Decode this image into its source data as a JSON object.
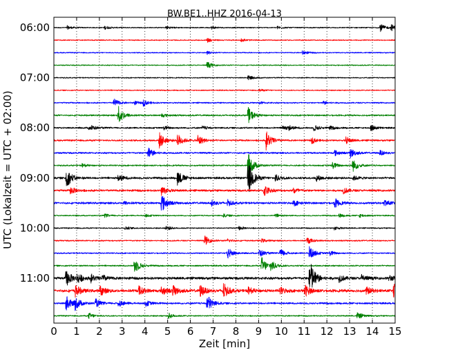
{
  "chart_data": {
    "type": "line",
    "title": "BW.BE1..HHZ 2016-04-13",
    "xlabel": "Zeit  [min]",
    "ylabel": "UTC (Lokalzeit = UTC + 02:00)",
    "xlim": [
      0,
      15
    ],
    "x_ticks": [
      "0",
      "1",
      "2",
      "3",
      "4",
      "5",
      "6",
      "7",
      "8",
      "9",
      "10",
      "11",
      "12",
      "13",
      "14",
      "15"
    ],
    "y_ticks": [
      "06:00",
      "07:00",
      "08:00",
      "09:00",
      "10:00",
      "11:00"
    ],
    "grid": "vertical dotted",
    "trace_interval_min": 15,
    "trace_colors": [
      "#000000",
      "#ff0000",
      "#0000ff",
      "#008000"
    ],
    "series": [
      {
        "start": "06:00",
        "color": "#000000",
        "noise": 0.8,
        "events": [
          [
            0.55,
            3
          ],
          [
            2.2,
            3
          ],
          [
            4.9,
            3
          ],
          [
            6.9,
            2.5
          ],
          [
            9.8,
            2.5
          ],
          [
            14.3,
            7
          ],
          [
            14.8,
            5
          ]
        ]
      },
      {
        "start": "06:15",
        "color": "#ff0000",
        "noise": 0.8,
        "events": [
          [
            6.7,
            4
          ],
          [
            8.2,
            2.5
          ]
        ]
      },
      {
        "start": "06:30",
        "color": "#0000ff",
        "noise": 0.8,
        "events": [
          [
            6.7,
            3
          ],
          [
            10.9,
            3.5
          ]
        ]
      },
      {
        "start": "06:45",
        "color": "#008000",
        "noise": 0.8,
        "events": [
          [
            6.7,
            6
          ]
        ]
      },
      {
        "start": "07:00",
        "color": "#000000",
        "noise": 0.8,
        "events": [
          [
            8.5,
            4
          ]
        ]
      },
      {
        "start": "07:15",
        "color": "#ff0000",
        "noise": 0.8,
        "events": [
          [
            9.0,
            2
          ]
        ]
      },
      {
        "start": "07:30",
        "color": "#0000ff",
        "noise": 1.0,
        "events": [
          [
            2.6,
            7
          ],
          [
            3.5,
            3
          ],
          [
            3.9,
            5
          ],
          [
            9.0,
            2
          ],
          [
            11.8,
            3
          ]
        ]
      },
      {
        "start": "07:45",
        "color": "#008000",
        "noise": 1.2,
        "events": [
          [
            2.8,
            16
          ],
          [
            4.7,
            3
          ],
          [
            8.5,
            14
          ]
        ]
      },
      {
        "start": "08:00",
        "color": "#000000",
        "noise": 1.2,
        "events": [
          [
            1.5,
            2
          ],
          [
            1.6,
            3
          ],
          [
            4.8,
            3
          ],
          [
            6.5,
            3
          ],
          [
            10.0,
            5
          ],
          [
            10.3,
            3
          ],
          [
            11.4,
            5
          ],
          [
            12.1,
            3
          ],
          [
            13.9,
            5
          ]
        ]
      },
      {
        "start": "08:15",
        "color": "#ff0000",
        "noise": 1.3,
        "events": [
          [
            4.6,
            14
          ],
          [
            5.4,
            12
          ],
          [
            6.3,
            10
          ],
          [
            9.3,
            16
          ],
          [
            11.3,
            5
          ],
          [
            12.8,
            6
          ]
        ]
      },
      {
        "start": "08:30",
        "color": "#0000ff",
        "noise": 1.3,
        "events": [
          [
            4.1,
            10
          ],
          [
            12.3,
            5
          ],
          [
            13.0,
            8
          ],
          [
            14.3,
            4
          ]
        ]
      },
      {
        "start": "08:45",
        "color": "#008000",
        "noise": 1.1,
        "events": [
          [
            1.2,
            3
          ],
          [
            8.5,
            22
          ],
          [
            12.2,
            6
          ],
          [
            13.1,
            11
          ]
        ]
      },
      {
        "start": "09:00",
        "color": "#000000",
        "noise": 1.6,
        "events": [
          [
            0.5,
            18
          ],
          [
            2.8,
            6
          ],
          [
            5.4,
            14
          ],
          [
            8.5,
            30
          ],
          [
            9.7,
            6
          ],
          [
            11.5,
            5
          ],
          [
            13.1,
            4
          ]
        ]
      },
      {
        "start": "09:15",
        "color": "#ff0000",
        "noise": 1.6,
        "events": [
          [
            0.7,
            6
          ],
          [
            4.7,
            8
          ],
          [
            9.2,
            10
          ],
          [
            10.5,
            5
          ],
          [
            12.7,
            5
          ]
        ]
      },
      {
        "start": "09:30",
        "color": "#0000ff",
        "noise": 1.6,
        "events": [
          [
            3.0,
            3
          ],
          [
            4.7,
            16
          ],
          [
            6.9,
            5
          ],
          [
            7.6,
            5
          ],
          [
            10.5,
            5
          ],
          [
            12.3,
            8
          ],
          [
            14.5,
            6
          ]
        ]
      },
      {
        "start": "09:45",
        "color": "#008000",
        "noise": 0.9,
        "events": [
          [
            2.2,
            3
          ],
          [
            4.0,
            2
          ],
          [
            7.4,
            3
          ],
          [
            9.7,
            3
          ],
          [
            12.5,
            3
          ],
          [
            13.4,
            3
          ]
        ]
      },
      {
        "start": "10:00",
        "color": "#000000",
        "noise": 0.9,
        "events": [
          [
            3.1,
            3
          ],
          [
            4.9,
            4
          ],
          [
            8.1,
            3
          ],
          [
            12.3,
            3
          ]
        ]
      },
      {
        "start": "10:15",
        "color": "#ff0000",
        "noise": 1.0,
        "events": [
          [
            6.6,
            8
          ],
          [
            7.6,
            3
          ],
          [
            9.1,
            3
          ],
          [
            11.1,
            6
          ]
        ]
      },
      {
        "start": "10:30",
        "color": "#0000ff",
        "noise": 1.0,
        "events": [
          [
            7.6,
            10
          ],
          [
            9.0,
            7
          ],
          [
            9.9,
            8
          ],
          [
            11.2,
            12
          ],
          [
            12.1,
            4
          ]
        ]
      },
      {
        "start": "10:45",
        "color": "#008000",
        "noise": 1.1,
        "events": [
          [
            3.5,
            14
          ],
          [
            9.1,
            15
          ],
          [
            9.5,
            8
          ]
        ]
      },
      {
        "start": "11:00",
        "color": "#000000",
        "noise": 2.0,
        "events": [
          [
            0.5,
            14
          ],
          [
            1.0,
            8
          ],
          [
            1.6,
            6
          ],
          [
            2.1,
            5
          ],
          [
            11.2,
            35
          ],
          [
            12.5,
            6
          ],
          [
            13.5,
            6
          ],
          [
            14.7,
            5
          ]
        ]
      },
      {
        "start": "11:15",
        "color": "#ff0000",
        "noise": 2.2,
        "events": [
          [
            0.9,
            10
          ],
          [
            2.0,
            8
          ],
          [
            3.7,
            8
          ],
          [
            4.7,
            8
          ],
          [
            5.2,
            8
          ],
          [
            6.4,
            10
          ],
          [
            7.4,
            14
          ],
          [
            8.5,
            6
          ],
          [
            9.9,
            6
          ],
          [
            11.0,
            10
          ],
          [
            13.7,
            6
          ],
          [
            14.9,
            12
          ]
        ]
      },
      {
        "start": "11:30",
        "color": "#0000ff",
        "noise": 1.4,
        "events": [
          [
            0.5,
            14
          ],
          [
            0.9,
            10
          ],
          [
            1.8,
            7
          ],
          [
            2.8,
            6
          ],
          [
            4.0,
            5
          ],
          [
            6.7,
            16
          ]
        ]
      },
      {
        "start": "11:45",
        "color": "#008000",
        "noise": 1.0,
        "events": [
          [
            1.5,
            5
          ],
          [
            5.0,
            5
          ],
          [
            13.3,
            6
          ]
        ]
      }
    ]
  }
}
